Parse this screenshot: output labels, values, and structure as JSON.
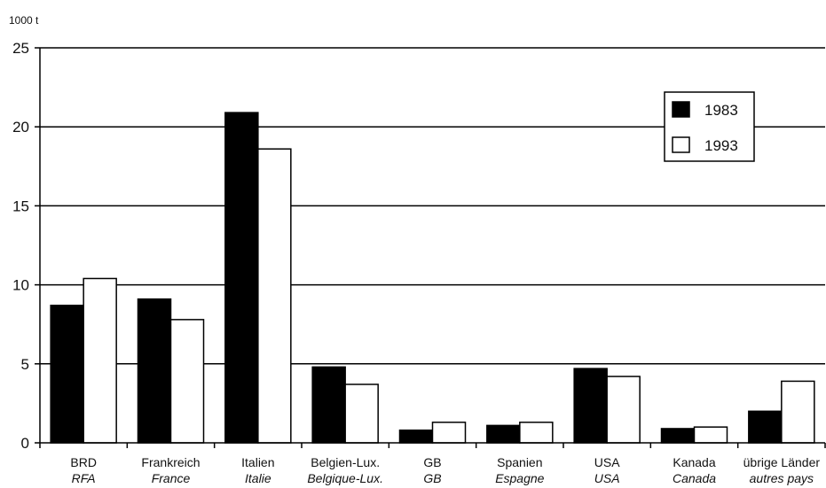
{
  "chart_data": {
    "type": "bar",
    "ylabel": "1000 t",
    "ylim": [
      0,
      25
    ],
    "yticks": [
      0,
      5,
      10,
      15,
      20,
      25
    ],
    "grid": true,
    "legend_position": "top-right",
    "categories": [
      {
        "label": "BRD",
        "label_fr": "RFA"
      },
      {
        "label": "Frankreich",
        "label_fr": "France"
      },
      {
        "label": "Italien",
        "label_fr": "Italie"
      },
      {
        "label": "Belgien-Lux.",
        "label_fr": "Belgique-Lux."
      },
      {
        "label": "GB",
        "label_fr": "GB"
      },
      {
        "label": "Spanien",
        "label_fr": "Espagne"
      },
      {
        "label": "USA",
        "label_fr": "USA"
      },
      {
        "label": "Kanada",
        "label_fr": "Canada"
      },
      {
        "label": "übrige Länder",
        "label_fr": "autres pays"
      }
    ],
    "series": [
      {
        "name": "1983",
        "color": "#000000",
        "values": [
          8.7,
          9.1,
          20.9,
          4.8,
          0.8,
          1.1,
          4.7,
          0.9,
          2.0
        ]
      },
      {
        "name": "1993",
        "color": "#ffffff",
        "values": [
          10.4,
          7.8,
          18.6,
          3.7,
          1.3,
          1.3,
          4.2,
          1.0,
          3.9
        ]
      }
    ]
  }
}
